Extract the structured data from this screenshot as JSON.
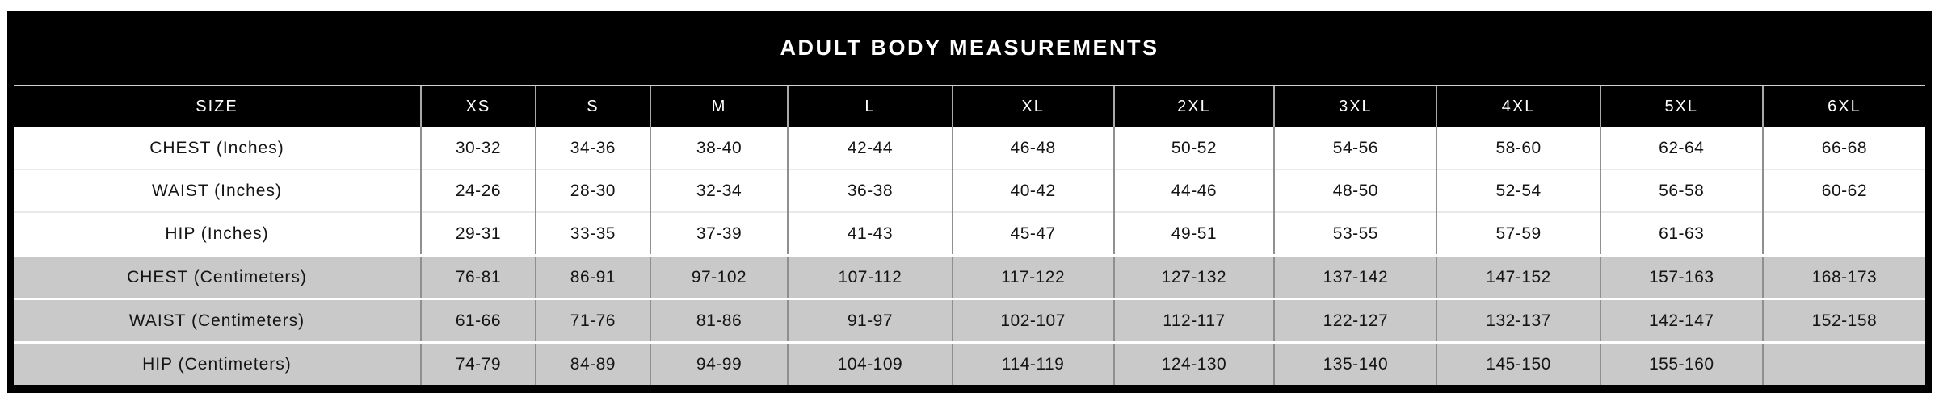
{
  "chart_data": {
    "type": "table",
    "title": "ADULT BODY MEASUREMENTS",
    "columns": [
      "SIZE",
      "XS",
      "S",
      "M",
      "L",
      "XL",
      "2XL",
      "3XL",
      "4XL",
      "5XL",
      "6XL"
    ],
    "rows": [
      {
        "label": "CHEST (Inches)",
        "group": "inches",
        "values": [
          "30-32",
          "34-36",
          "38-40",
          "42-44",
          "46-48",
          "50-52",
          "54-56",
          "58-60",
          "62-64",
          "66-68"
        ]
      },
      {
        "label": "WAIST (Inches)",
        "group": "inches",
        "values": [
          "24-26",
          "28-30",
          "32-34",
          "36-38",
          "40-42",
          "44-46",
          "48-50",
          "52-54",
          "56-58",
          "60-62"
        ]
      },
      {
        "label": "HIP (Inches)",
        "group": "inches",
        "values": [
          "29-31",
          "33-35",
          "37-39",
          "41-43",
          "45-47",
          "49-51",
          "53-55",
          "57-59",
          "61-63",
          ""
        ]
      },
      {
        "label": "CHEST (Centimeters)",
        "group": "centimeters",
        "values": [
          "76-81",
          "86-91",
          "97-102",
          "107-112",
          "117-122",
          "127-132",
          "137-142",
          "147-152",
          "157-163",
          "168-173"
        ]
      },
      {
        "label": "WAIST (Centimeters)",
        "group": "centimeters",
        "values": [
          "61-66",
          "71-76",
          "81-86",
          "91-97",
          "102-107",
          "112-117",
          "122-127",
          "132-137",
          "142-147",
          "152-158"
        ]
      },
      {
        "label": "HIP (Centimeters)",
        "group": "centimeters",
        "values": [
          "74-79",
          "84-89",
          "94-99",
          "104-109",
          "114-119",
          "124-130",
          "135-140",
          "145-150",
          "155-160",
          ""
        ]
      }
    ],
    "colors": {
      "header_bg": "#000000",
      "header_text": "#ffffff",
      "alt_row_bg": "#c9c9c9",
      "grid_line": "#8f8f8f",
      "light_row_line": "#e9e9e9"
    },
    "layout": {
      "grid": true,
      "legend": "none"
    }
  }
}
